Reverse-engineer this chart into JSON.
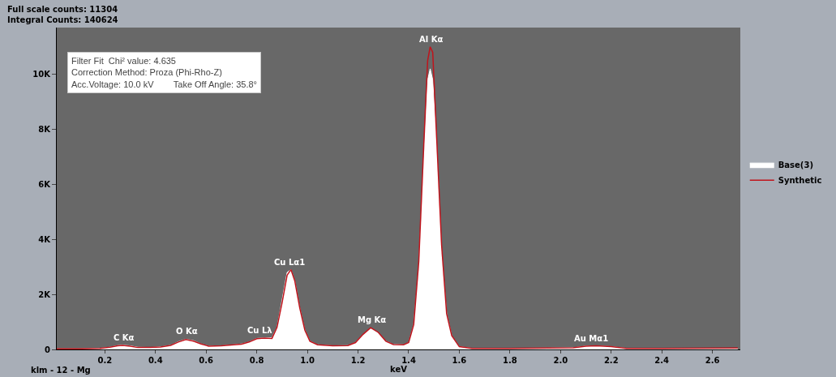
{
  "chart_data": {
    "type": "area",
    "xlabel": "keV",
    "legend": "right",
    "annotations": [
      "Full scale counts: 11304",
      "Integral Counts: 140624",
      "Filter Fit  Chi² value: 4.635",
      "Correction Method: Proza (Phi-Rho-Z)",
      "Acc.Voltage: 10.0 kV        Take Off Angle: 35.8°",
      "klm - 12 - Mg",
      {
        "text": "C Kα",
        "x": 0.277,
        "y": 160
      },
      {
        "text": "O Kα",
        "x": 0.525,
        "y": 370
      },
      {
        "text": "Cu Lλ",
        "x": 0.811,
        "y": 420
      },
      {
        "text": "Cu Lα1",
        "x": 0.93,
        "y": 2900
      },
      {
        "text": "Mg Kα",
        "x": 1.254,
        "y": 790
      },
      {
        "text": "Al Kα",
        "x": 1.487,
        "y": 11000
      },
      {
        "text": "Au Mα1",
        "x": 2.12,
        "y": 130
      }
    ],
    "x": [
      0.01,
      0.1,
      0.18,
      0.22,
      0.25,
      0.27,
      0.3,
      0.33,
      0.38,
      0.42,
      0.46,
      0.49,
      0.52,
      0.55,
      0.58,
      0.61,
      0.66,
      0.7,
      0.74,
      0.77,
      0.8,
      0.83,
      0.86,
      0.88,
      0.9,
      0.92,
      0.935,
      0.95,
      0.97,
      0.99,
      1.01,
      1.04,
      1.1,
      1.16,
      1.19,
      1.22,
      1.25,
      1.28,
      1.31,
      1.34,
      1.38,
      1.4,
      1.42,
      1.44,
      1.46,
      1.475,
      1.485,
      1.495,
      1.51,
      1.53,
      1.55,
      1.57,
      1.6,
      1.65,
      1.8,
      1.95,
      2.05,
      2.1,
      2.14,
      2.2,
      2.26,
      2.4,
      2.7
    ],
    "series": [
      {
        "name": "Base(3)",
        "color": "#ffffff",
        "values": [
          20,
          20,
          40,
          80,
          140,
          160,
          130,
          80,
          70,
          90,
          150,
          280,
          370,
          320,
          200,
          120,
          130,
          160,
          200,
          270,
          400,
          420,
          430,
          800,
          1800,
          2800,
          2900,
          2500,
          1500,
          700,
          300,
          170,
          130,
          140,
          250,
          550,
          760,
          600,
          300,
          180,
          170,
          250,
          900,
          3000,
          7000,
          9800,
          10200,
          9800,
          7500,
          3500,
          1300,
          500,
          100,
          40,
          40,
          50,
          60,
          120,
          130,
          100,
          40,
          30,
          30
        ]
      },
      {
        "name": "Synthetic",
        "type": "line",
        "color": "#c0141c",
        "values": [
          20,
          20,
          40,
          80,
          130,
          150,
          120,
          70,
          70,
          90,
          150,
          270,
          360,
          300,
          200,
          120,
          130,
          160,
          190,
          270,
          390,
          410,
          400,
          800,
          1700,
          2700,
          2900,
          2500,
          1500,
          700,
          300,
          170,
          130,
          140,
          250,
          550,
          790,
          620,
          300,
          180,
          170,
          250,
          900,
          3200,
          7500,
          10500,
          11000,
          10800,
          7800,
          3800,
          1300,
          500,
          100,
          40,
          40,
          50,
          60,
          120,
          130,
          100,
          40,
          40,
          50
        ]
      }
    ],
    "xlim": [
      0.01,
      2.71
    ],
    "xticks": [
      0.2,
      0.4,
      0.6,
      0.8,
      {
        "value": 1,
        "label": "1.0"
      },
      1.2,
      1.4,
      1.6,
      1.8,
      {
        "value": 2,
        "label": "2.0"
      },
      2.2,
      2.4,
      2.6
    ],
    "ylim": [
      0,
      11700
    ],
    "yticks": [
      0,
      {
        "value": 2000,
        "label": "2K"
      },
      {
        "value": 4000,
        "label": "4K"
      },
      {
        "value": 6000,
        "label": "6K"
      },
      {
        "value": 8000,
        "label": "8K"
      },
      {
        "value": 10000,
        "label": "10K"
      }
    ]
  }
}
